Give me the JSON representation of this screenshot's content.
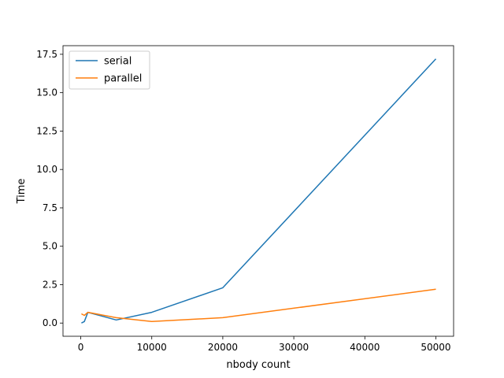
{
  "chart_data": {
    "type": "line",
    "title": "",
    "xlabel": "nbody count",
    "ylabel": "Time",
    "xlim": [
      -2500,
      52500
    ],
    "ylim": [
      -0.86,
      18.06
    ],
    "xticks": [
      0,
      10000,
      20000,
      30000,
      40000,
      50000
    ],
    "xtick_labels": [
      "0",
      "10000",
      "20000",
      "30000",
      "40000",
      "50000"
    ],
    "yticks": [
      0.0,
      2.5,
      5.0,
      7.5,
      10.0,
      12.5,
      15.0,
      17.5
    ],
    "ytick_labels": [
      "0.0",
      "2.5",
      "5.0",
      "7.5",
      "10.0",
      "12.5",
      "15.0",
      "17.5"
    ],
    "grid": false,
    "legend": "top-left",
    "series": [
      {
        "name": "serial",
        "color": "#1f77b4",
        "x": [
          100,
          500,
          1000,
          5000,
          10000,
          20000,
          50000
        ],
        "y": [
          0.0,
          0.1,
          0.7,
          0.2,
          0.7,
          2.3,
          17.2
        ]
      },
      {
        "name": "parallel",
        "color": "#ff7f0e",
        "x": [
          100,
          500,
          1000,
          5000,
          10000,
          20000,
          50000
        ],
        "y": [
          0.6,
          0.5,
          0.7,
          0.35,
          0.1,
          0.35,
          2.2
        ]
      }
    ]
  }
}
